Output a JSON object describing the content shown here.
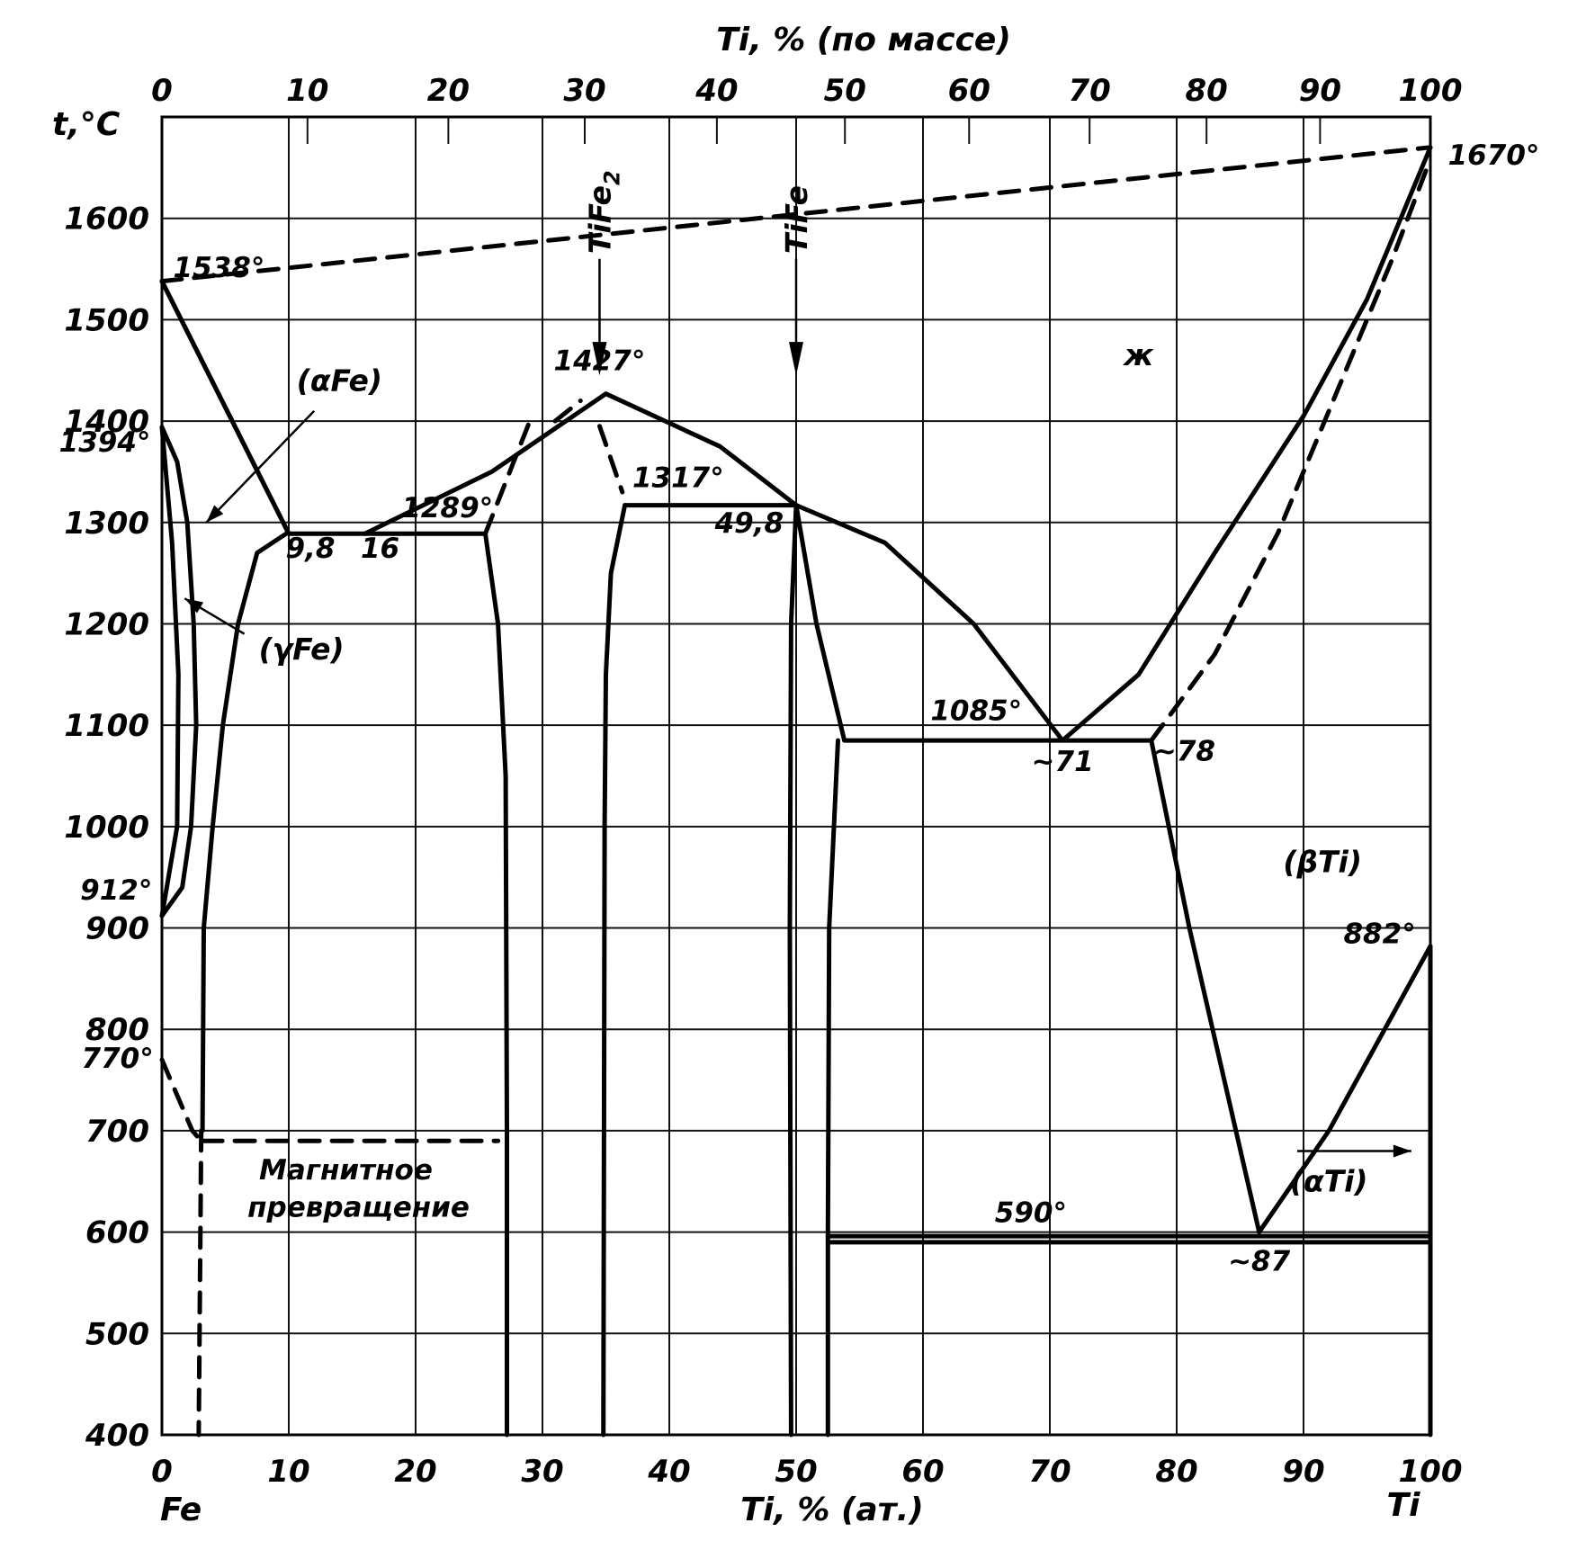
{
  "chart_data": {
    "type": "line",
    "top_axis_title": "Ti, % (по массе)",
    "bottom_axis_title": "Ti, % (ат.)",
    "y_axis_title": "t,°C",
    "left_element": "Fe",
    "right_element": "Ti",
    "x_range": [
      0,
      100
    ],
    "ylim": [
      400,
      1700
    ],
    "grid": true,
    "bottom_ticks": [
      "0",
      "10",
      "20",
      "30",
      "40",
      "50",
      "60",
      "70",
      "80",
      "90",
      "100"
    ],
    "top_ticks": [
      "0",
      "10",
      "20",
      "30",
      "40",
      "50",
      "60",
      "70",
      "80",
      "90",
      "100"
    ],
    "y_ticks": [
      "400",
      "500",
      "600",
      "700",
      "800",
      "900",
      "1000",
      "1100",
      "1200",
      "1300",
      "1400",
      "1500",
      "1600"
    ],
    "compounds": [
      {
        "label": "TiFe",
        "sub": "2",
        "x": 34.5
      },
      {
        "label": "TiFe",
        "sub": "",
        "x": 50
      }
    ],
    "phase_regions": [
      {
        "label": "(αFe)",
        "x": 14,
        "y": 1430
      },
      {
        "label": "(γFe)",
        "x": 11,
        "y": 1165
      },
      {
        "label": "ж",
        "x": 77,
        "y": 1455
      },
      {
        "label": "(βTi)",
        "x": 91.5,
        "y": 955
      },
      {
        "label": "(αTi)",
        "x": 92,
        "y": 640
      }
    ],
    "annotations": [
      {
        "text": "1538°",
        "x": 4.5,
        "y": 1542
      },
      {
        "text": "1394°",
        "x": -4.5,
        "y": 1370
      },
      {
        "text": "912°",
        "x": -3.6,
        "y": 928
      },
      {
        "text": "770°",
        "x": -3.5,
        "y": 762
      },
      {
        "text": "1670°",
        "x": 105,
        "y": 1653
      },
      {
        "text": "1427°",
        "x": 34.5,
        "y": 1450
      },
      {
        "text": "1317°",
        "x": 40.7,
        "y": 1335
      },
      {
        "text": "1289°",
        "x": 22.5,
        "y": 1305
      },
      {
        "text": "9,8",
        "x": 11.7,
        "y": 1265
      },
      {
        "text": "16",
        "x": 17.2,
        "y": 1265
      },
      {
        "text": "49,8",
        "x": 46.3,
        "y": 1290
      },
      {
        "text": "1085°",
        "x": 64.2,
        "y": 1105
      },
      {
        "text": "~71",
        "x": 71,
        "y": 1055
      },
      {
        "text": "~78",
        "x": 80.6,
        "y": 1065
      },
      {
        "text": "882°",
        "x": 96,
        "y": 885
      },
      {
        "text": "590°",
        "x": 68.5,
        "y": 610
      },
      {
        "text": "~87",
        "x": 86.5,
        "y": 562
      },
      {
        "text": "Магнитное",
        "x": 14.5,
        "y": 652
      },
      {
        "text": "превращение",
        "x": 15.5,
        "y": 615
      }
    ],
    "series": [
      {
        "style": "solid",
        "points": [
          [
            0,
            1538
          ],
          [
            10,
            1289
          ],
          [
            16,
            1289
          ],
          [
            26,
            1350
          ],
          [
            35,
            1427
          ],
          [
            44,
            1375
          ],
          [
            50,
            1317
          ],
          [
            57,
            1280
          ],
          [
            64,
            1200
          ],
          [
            71,
            1085
          ],
          [
            77,
            1150
          ],
          [
            83,
            1270
          ],
          [
            90,
            1405
          ],
          [
            95,
            1520
          ],
          [
            100,
            1670
          ]
        ]
      },
      {
        "style": "solid",
        "points": [
          [
            0,
            1538
          ],
          [
            10,
            1289
          ]
        ]
      },
      {
        "style": "solid",
        "points": [
          [
            9.8,
            1289
          ],
          [
            7.5,
            1270
          ],
          [
            6,
            1200
          ],
          [
            4.8,
            1100
          ],
          [
            4,
            1000
          ],
          [
            3.3,
            900
          ],
          [
            3.2,
            700
          ]
        ]
      },
      {
        "style": "solid",
        "points": [
          [
            0,
            1394
          ],
          [
            1.2,
            1360
          ],
          [
            2,
            1300
          ],
          [
            2.5,
            1200
          ],
          [
            2.7,
            1100
          ],
          [
            2.3,
            1000
          ],
          [
            1.6,
            940
          ],
          [
            0,
            912
          ]
        ]
      },
      {
        "style": "solid",
        "points": [
          [
            0,
            1394
          ],
          [
            0.8,
            1280
          ],
          [
            1.3,
            1150
          ],
          [
            1.2,
            1000
          ],
          [
            0,
            912
          ]
        ]
      },
      {
        "style": "solid",
        "points": [
          [
            16,
            1289
          ],
          [
            25.5,
            1289
          ]
        ]
      },
      {
        "style": "solid",
        "points": [
          [
            25.5,
            1289
          ],
          [
            26.5,
            1200
          ],
          [
            27.1,
            1050
          ],
          [
            27.2,
            700
          ],
          [
            27.2,
            400
          ]
        ]
      },
      {
        "style": "solid",
        "points": [
          [
            36.5,
            1317
          ],
          [
            35.4,
            1250
          ],
          [
            35,
            1150
          ],
          [
            34.9,
            1000
          ],
          [
            34.8,
            400
          ]
        ]
      },
      {
        "style": "solid",
        "points": [
          [
            36.5,
            1317
          ],
          [
            50,
            1317
          ]
        ]
      },
      {
        "style": "solid",
        "points": [
          [
            50,
            1317
          ],
          [
            49.6,
            1200
          ],
          [
            49.5,
            900
          ],
          [
            49.6,
            400
          ]
        ]
      },
      {
        "style": "solid",
        "points": [
          [
            50,
            1317
          ],
          [
            51.6,
            1200
          ],
          [
            53.8,
            1085
          ]
        ]
      },
      {
        "style": "solid",
        "points": [
          [
            53.8,
            1085
          ],
          [
            78,
            1085
          ]
        ]
      },
      {
        "style": "solid",
        "points": [
          [
            53.3,
            1085
          ],
          [
            52.6,
            900
          ],
          [
            52.5,
            600
          ],
          [
            52.5,
            400
          ]
        ]
      },
      {
        "style": "solid",
        "points": [
          [
            78,
            1085
          ],
          [
            81,
            900
          ],
          [
            86.5,
            600
          ]
        ]
      },
      {
        "style": "solid",
        "points": [
          [
            86.5,
            600
          ],
          [
            92,
            700
          ],
          [
            100,
            882
          ]
        ]
      },
      {
        "style": "solid",
        "points": [
          [
            52.5,
            596
          ],
          [
            100,
            596
          ]
        ]
      },
      {
        "style": "solid",
        "points": [
          [
            52.5,
            590
          ],
          [
            100,
            590
          ]
        ]
      },
      {
        "style": "solid",
        "points": [
          [
            100,
            882
          ],
          [
            100,
            400
          ]
        ]
      },
      {
        "style": "dashed",
        "points": [
          [
            0,
            1538
          ],
          [
            100,
            1670
          ]
        ]
      },
      {
        "style": "dashed",
        "points": [
          [
            25.5,
            1289
          ],
          [
            29,
            1400
          ]
        ]
      },
      {
        "style": "dashed",
        "points": [
          [
            31,
            1400
          ],
          [
            33,
            1420
          ]
        ]
      },
      {
        "style": "dashed",
        "points": [
          [
            34.5,
            1395
          ],
          [
            36.3,
            1330
          ]
        ]
      },
      {
        "style": "dashed",
        "points": [
          [
            78,
            1085
          ],
          [
            83,
            1170
          ],
          [
            88,
            1290
          ],
          [
            93,
            1440
          ],
          [
            97,
            1560
          ],
          [
            99.8,
            1652
          ]
        ]
      },
      {
        "style": "dashed",
        "points": [
          [
            0,
            770
          ],
          [
            2.4,
            700
          ],
          [
            3.1,
            690
          ]
        ]
      },
      {
        "style": "dashed",
        "points": [
          [
            3.2,
            690
          ],
          [
            26.5,
            690
          ]
        ]
      },
      {
        "style": "dashed",
        "points": [
          [
            3.1,
            700
          ],
          [
            2.9,
            400
          ]
        ]
      },
      {
        "style": "dashed",
        "points": [
          [
            100,
            860
          ],
          [
            100,
            520
          ]
        ]
      }
    ]
  }
}
